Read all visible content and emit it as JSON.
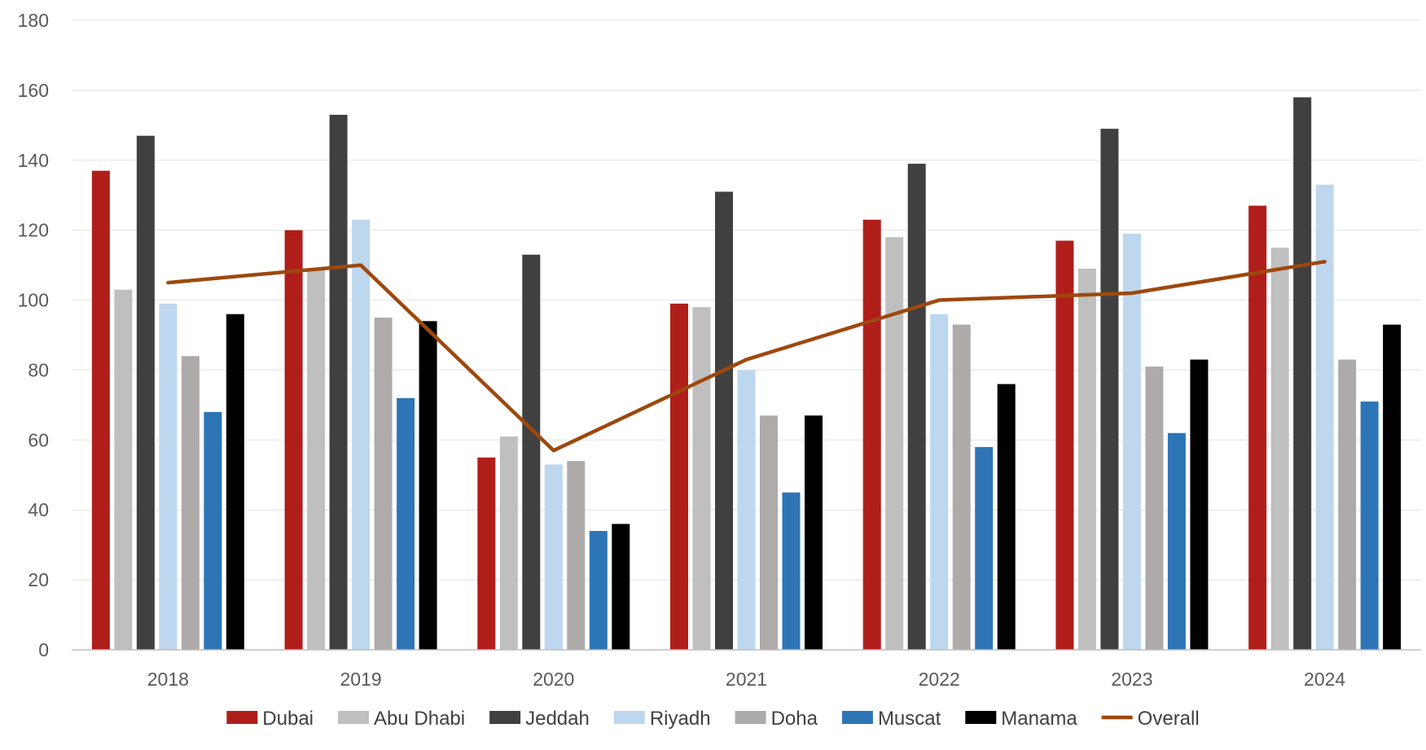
{
  "chart_data": {
    "type": "bar",
    "categories": [
      "2018",
      "2019",
      "2020",
      "2021",
      "2022",
      "2023",
      "2024"
    ],
    "series": [
      {
        "name": "Dubai",
        "kind": "bar",
        "color": "#B01E1A",
        "values": [
          137,
          120,
          55,
          99,
          123,
          117,
          127
        ]
      },
      {
        "name": "Abu Dhabi",
        "kind": "bar",
        "color": "#BFBFBF",
        "values": [
          103,
          109,
          61,
          98,
          118,
          109,
          115
        ]
      },
      {
        "name": "Jeddah",
        "kind": "bar",
        "color": "#404040",
        "values": [
          147,
          153,
          113,
          131,
          139,
          149,
          158
        ]
      },
      {
        "name": "Riyadh",
        "kind": "bar",
        "color": "#BDD7EE",
        "values": [
          99,
          123,
          53,
          80,
          96,
          119,
          133
        ]
      },
      {
        "name": "Doha",
        "kind": "bar",
        "color": "#AEAAAA",
        "values": [
          84,
          95,
          54,
          67,
          93,
          81,
          83
        ]
      },
      {
        "name": "Muscat",
        "kind": "bar",
        "color": "#2E75B6",
        "values": [
          68,
          72,
          34,
          45,
          58,
          62,
          71
        ]
      },
      {
        "name": "Manama",
        "kind": "bar",
        "color": "#000000",
        "values": [
          96,
          94,
          36,
          67,
          76,
          83,
          93
        ]
      },
      {
        "name": "Overall",
        "kind": "line",
        "color": "#9E480E",
        "values": [
          105,
          110,
          57,
          83,
          100,
          102,
          111
        ]
      }
    ],
    "yticks": [
      "0",
      "20",
      "40",
      "60",
      "80",
      "100",
      "120",
      "140",
      "160",
      "180"
    ],
    "ylim": [
      0,
      180
    ],
    "grid": true,
    "legend_position": "bottom"
  }
}
